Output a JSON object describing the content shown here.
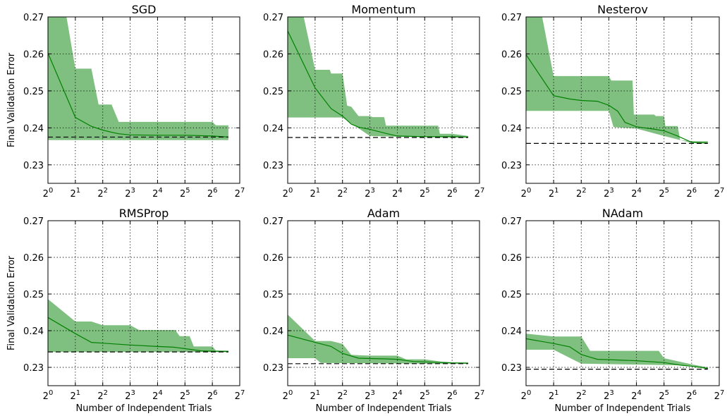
{
  "figure": {
    "ylabel": "Final Validation Error",
    "xlabel": "Number of Independent Trials"
  },
  "chart_data": [
    {
      "type": "area",
      "title": "SGD",
      "x_scale": "log2",
      "xlim": [
        1,
        128
      ],
      "ylim": [
        0.225,
        0.27
      ],
      "grid": true,
      "x_ticks": [
        1,
        2,
        4,
        8,
        16,
        32,
        64,
        128
      ],
      "y_ticks": [
        0.23,
        0.24,
        0.25,
        0.26,
        0.27
      ],
      "baseline": 0.2375,
      "series": [
        {
          "role": "median",
          "x": [
            1,
            2,
            3,
            4,
            5,
            6,
            8,
            16,
            32,
            64,
            96
          ],
          "y": [
            0.2602,
            0.2428,
            0.2404,
            0.2394,
            0.2388,
            0.2384,
            0.2381,
            0.238,
            0.238,
            0.2378,
            0.2375
          ]
        },
        {
          "role": "upper",
          "x": [
            1,
            1.6,
            2,
            3,
            3.6,
            5,
            6,
            8,
            16,
            32,
            64,
            70,
            90,
            96
          ],
          "y": [
            0.271,
            0.271,
            0.256,
            0.256,
            0.2463,
            0.2463,
            0.2416,
            0.2416,
            0.2416,
            0.2416,
            0.2416,
            0.2407,
            0.2407,
            0.2407
          ]
        },
        {
          "role": "lower",
          "x": [
            1,
            96
          ],
          "y": [
            0.2367,
            0.2367
          ]
        }
      ]
    },
    {
      "type": "area",
      "title": "Momentum",
      "x_scale": "log2",
      "xlim": [
        1,
        128
      ],
      "ylim": [
        0.225,
        0.27
      ],
      "grid": true,
      "x_ticks": [
        1,
        2,
        4,
        8,
        16,
        32,
        64,
        128
      ],
      "y_ticks": [
        0.23,
        0.24,
        0.25,
        0.26,
        0.27
      ],
      "baseline": 0.2374,
      "series": [
        {
          "role": "median",
          "x": [
            1,
            2,
            3,
            4,
            5,
            6,
            8,
            12,
            16,
            32,
            64,
            96
          ],
          "y": [
            0.2662,
            0.2508,
            0.2452,
            0.2432,
            0.241,
            0.2402,
            0.2396,
            0.2385,
            0.2378,
            0.2376,
            0.2376,
            0.2375
          ]
        },
        {
          "role": "upper",
          "x": [
            1,
            1.5,
            2,
            2.9,
            3,
            4,
            4.5,
            5,
            6,
            8,
            8.6,
            11.5,
            12,
            16,
            25,
            45,
            47,
            64,
            96
          ],
          "y": [
            0.271,
            0.271,
            0.2557,
            0.2557,
            0.2547,
            0.2547,
            0.246,
            0.2457,
            0.2432,
            0.2432,
            0.2429,
            0.2429,
            0.2406,
            0.2406,
            0.2406,
            0.2406,
            0.2384,
            0.2384,
            0.2378
          ]
        },
        {
          "role": "lower",
          "x": [
            1,
            4,
            8,
            16,
            32,
            64,
            96
          ],
          "y": [
            0.2428,
            0.2428,
            0.2378,
            0.2376,
            0.2375,
            0.2374,
            0.2374
          ]
        }
      ]
    },
    {
      "type": "area",
      "title": "Nesterov",
      "x_scale": "log2",
      "xlim": [
        1,
        128
      ],
      "ylim": [
        0.225,
        0.27
      ],
      "grid": true,
      "x_ticks": [
        1,
        2,
        4,
        8,
        16,
        32,
        64,
        128
      ],
      "y_ticks": [
        0.23,
        0.24,
        0.25,
        0.26,
        0.27
      ],
      "baseline": 0.2358,
      "series": [
        {
          "role": "median",
          "x": [
            1,
            2,
            3,
            4,
            6,
            8,
            10,
            12,
            16,
            24,
            32,
            45,
            64,
            96
          ],
          "y": [
            0.2598,
            0.2487,
            0.2478,
            0.2474,
            0.2472,
            0.2461,
            0.2445,
            0.2415,
            0.2403,
            0.2397,
            0.2392,
            0.2378,
            0.2361,
            0.2359
          ]
        },
        {
          "role": "upper",
          "x": [
            1,
            1.5,
            2,
            8,
            8.5,
            14.5,
            15,
            25,
            26,
            32,
            33,
            45,
            48,
            64,
            96
          ],
          "y": [
            0.271,
            0.271,
            0.254,
            0.254,
            0.2528,
            0.2528,
            0.2436,
            0.2436,
            0.2432,
            0.2432,
            0.2405,
            0.2405,
            0.2367,
            0.2364,
            0.2364
          ]
        },
        {
          "role": "lower",
          "x": [
            1,
            8,
            9,
            16,
            32,
            64,
            96
          ],
          "y": [
            0.2446,
            0.2446,
            0.2402,
            0.2398,
            0.2378,
            0.2359,
            0.2357
          ]
        }
      ]
    },
    {
      "type": "area",
      "title": "RMSProp",
      "x_scale": "log2",
      "xlim": [
        1,
        128
      ],
      "ylim": [
        0.225,
        0.27
      ],
      "grid": true,
      "x_ticks": [
        1,
        2,
        4,
        8,
        16,
        32,
        64,
        128
      ],
      "y_ticks": [
        0.23,
        0.24,
        0.25,
        0.26,
        0.27
      ],
      "baseline": 0.2342,
      "series": [
        {
          "role": "median",
          "x": [
            1,
            2,
            3,
            4,
            8,
            16,
            24,
            32,
            48,
            64,
            96
          ],
          "y": [
            0.2436,
            0.2392,
            0.2368,
            0.2366,
            0.2361,
            0.2357,
            0.2355,
            0.2351,
            0.2345,
            0.2344,
            0.2343
          ]
        },
        {
          "role": "upper",
          "x": [
            1,
            2,
            3,
            4,
            8,
            10,
            25,
            28,
            36,
            40,
            64,
            70,
            96
          ],
          "y": [
            0.2486,
            0.2425,
            0.2425,
            0.2415,
            0.2415,
            0.2402,
            0.2402,
            0.2385,
            0.2385,
            0.2357,
            0.2357,
            0.2346,
            0.2346
          ]
        },
        {
          "role": "lower",
          "x": [
            1,
            96
          ],
          "y": [
            0.2342,
            0.2342
          ]
        }
      ]
    },
    {
      "type": "area",
      "title": "Adam",
      "x_scale": "log2",
      "xlim": [
        1,
        128
      ],
      "ylim": [
        0.225,
        0.27
      ],
      "grid": true,
      "x_ticks": [
        1,
        2,
        4,
        8,
        16,
        32,
        64,
        128
      ],
      "y_ticks": [
        0.23,
        0.24,
        0.25,
        0.26,
        0.27
      ],
      "baseline": 0.231,
      "series": [
        {
          "role": "median",
          "x": [
            1,
            2,
            3,
            4,
            6,
            8,
            12,
            16,
            24,
            32,
            48,
            64,
            96
          ],
          "y": [
            0.2388,
            0.2368,
            0.2357,
            0.2338,
            0.2325,
            0.2324,
            0.2323,
            0.2322,
            0.2316,
            0.2315,
            0.2313,
            0.2312,
            0.2311
          ]
        },
        {
          "role": "upper",
          "x": [
            1,
            2,
            3,
            4,
            5,
            8,
            16,
            20,
            32,
            48,
            64,
            96
          ],
          "y": [
            0.2444,
            0.2372,
            0.2372,
            0.2364,
            0.2334,
            0.2332,
            0.2332,
            0.2322,
            0.2322,
            0.2316,
            0.2314,
            0.2314
          ]
        },
        {
          "role": "lower",
          "x": [
            1,
            2,
            2.3,
            32,
            96
          ],
          "y": [
            0.2325,
            0.2325,
            0.2312,
            0.231,
            0.231
          ]
        }
      ]
    },
    {
      "type": "area",
      "title": "NAdam",
      "x_scale": "log2",
      "xlim": [
        1,
        128
      ],
      "ylim": [
        0.225,
        0.27
      ],
      "grid": true,
      "x_ticks": [
        1,
        2,
        4,
        8,
        16,
        32,
        64,
        128
      ],
      "y_ticks": [
        0.23,
        0.24,
        0.25,
        0.26,
        0.27
      ],
      "baseline": 0.2295,
      "series": [
        {
          "role": "median",
          "x": [
            1,
            2,
            3,
            4,
            6,
            8,
            16,
            32,
            48,
            64,
            96
          ],
          "y": [
            0.2378,
            0.2365,
            0.2356,
            0.2335,
            0.2322,
            0.2321,
            0.2318,
            0.2313,
            0.2306,
            0.2303,
            0.2297
          ]
        },
        {
          "role": "upper",
          "x": [
            1,
            2,
            4,
            5,
            8,
            16,
            28,
            32,
            64,
            96
          ],
          "y": [
            0.2392,
            0.2384,
            0.2384,
            0.2345,
            0.2345,
            0.2345,
            0.2345,
            0.2325,
            0.2308,
            0.23
          ]
        },
        {
          "role": "lower",
          "x": [
            1,
            2,
            4,
            64,
            96
          ],
          "y": [
            0.2348,
            0.2348,
            0.231,
            0.2305,
            0.2295
          ]
        }
      ]
    }
  ]
}
